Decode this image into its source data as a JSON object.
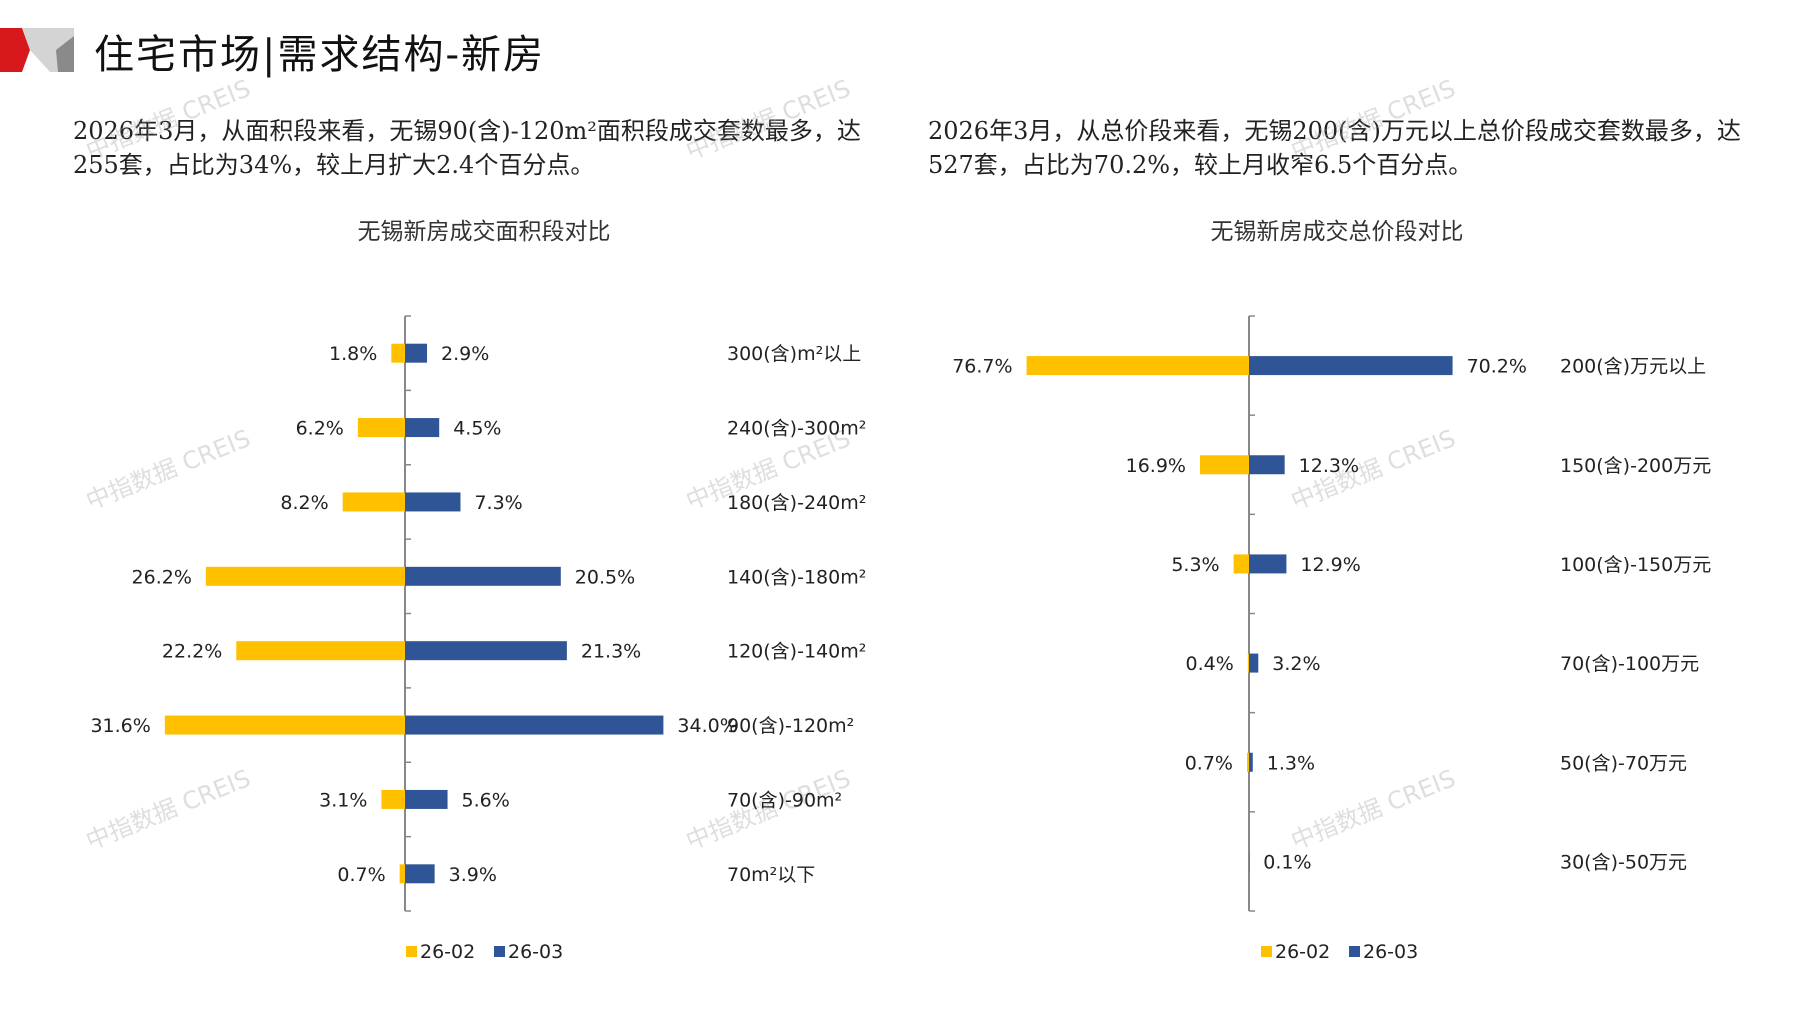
{
  "header": {
    "title": "住宅市场|需求结构-新房",
    "logo_colors": [
      "#d7191c",
      "#c8c8c8",
      "#888888"
    ]
  },
  "watermark": "中指数据 CREIS",
  "left_text": "2026年3月，从面积段来看，无锡90(含)-120m²面积段成交套数最多，达255套，占比为34%，较上月扩大2.4个百分点。",
  "right_text": "2026年3月，从总价段来看，无锡200(含)万元以上总价段成交套数最多，达527套，占比为70.2%，较上月收窄6.5个百分点。",
  "colors": {
    "s1": "#FFC000",
    "s2": "#2F5597",
    "axis": "#888888"
  },
  "chart_data": [
    {
      "type": "bar",
      "orientation": "horizontal-butterfly",
      "title": "无锡新房成交面积段对比",
      "categories": [
        "300(含)m²以上",
        "240(含)-300m²",
        "180(含)-240m²",
        "140(含)-180m²",
        "120(含)-140m²",
        "90(含)-120m²",
        "70(含)-90m²",
        "70m²以下"
      ],
      "series": [
        {
          "name": "26-02",
          "values": [
            1.8,
            6.2,
            8.2,
            26.2,
            22.2,
            31.6,
            3.1,
            0.7
          ]
        },
        {
          "name": "26-03",
          "values": [
            2.9,
            4.5,
            7.3,
            20.5,
            21.3,
            34.0,
            5.6,
            3.9
          ]
        }
      ],
      "unit": "%",
      "legend": "bottom",
      "grid": false
    },
    {
      "type": "bar",
      "orientation": "horizontal-butterfly",
      "title": "无锡新房成交总价段对比",
      "categories": [
        "200(含)万元以上",
        "150(含)-200万元",
        "100(含)-150万元",
        "70(含)-100万元",
        "50(含)-70万元",
        "30(含)-50万元"
      ],
      "series": [
        {
          "name": "26-02",
          "values": [
            76.7,
            16.9,
            5.3,
            0.4,
            0.7,
            null
          ]
        },
        {
          "name": "26-03",
          "values": [
            70.2,
            12.3,
            12.9,
            3.2,
            1.3,
            0.1
          ]
        }
      ],
      "unit": "%",
      "legend": "bottom",
      "grid": false
    }
  ]
}
